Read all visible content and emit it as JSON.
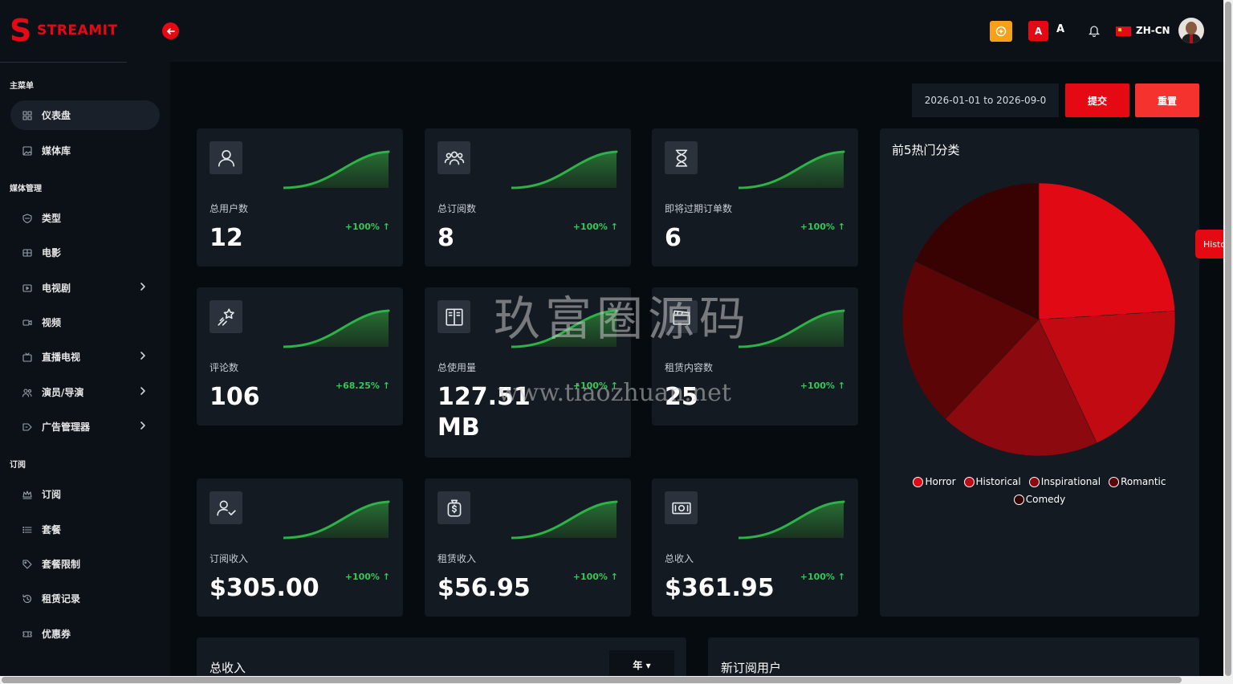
{
  "brand": {
    "logo_letter": "S",
    "name": "STREAMIT"
  },
  "sidebar": {
    "sections": [
      {
        "title": "主菜单",
        "items": [
          {
            "label": "仪表盘",
            "icon": "grid-icon",
            "active": true,
            "chevron": false
          },
          {
            "label": "媒体库",
            "icon": "image-icon",
            "active": false,
            "chevron": false
          }
        ]
      },
      {
        "title": "媒体管理",
        "items": [
          {
            "label": "类型",
            "icon": "shield-icon",
            "chevron": false
          },
          {
            "label": "电影",
            "icon": "film-icon",
            "chevron": false
          },
          {
            "label": "电视剧",
            "icon": "tv-play-icon",
            "chevron": true
          },
          {
            "label": "视频",
            "icon": "video-camera-icon",
            "chevron": false
          },
          {
            "label": "直播电视",
            "icon": "live-tv-icon",
            "chevron": true
          },
          {
            "label": "演员/导演",
            "icon": "users-icon",
            "chevron": true
          },
          {
            "label": "广告管理器",
            "icon": "ad-icon",
            "chevron": true
          }
        ]
      },
      {
        "title": "订阅",
        "items": [
          {
            "label": "订阅",
            "icon": "crown-icon",
            "chevron": false
          },
          {
            "label": "套餐",
            "icon": "list-icon",
            "chevron": false
          },
          {
            "label": "套餐限制",
            "icon": "tag-icon",
            "chevron": false
          },
          {
            "label": "租赁记录",
            "icon": "history-icon",
            "chevron": false
          },
          {
            "label": "优惠券",
            "icon": "ticket-icon",
            "chevron": false
          }
        ]
      }
    ]
  },
  "header": {
    "a_red": "A",
    "a_plain": "A",
    "language": "ZH-CN"
  },
  "toolbar": {
    "date_range": "2026-01-01 to 2026-09-0",
    "submit_label": "提交",
    "reset_label": "重置"
  },
  "stats": [
    {
      "label": "总用户数",
      "value": "12",
      "change": "+100% ↑",
      "icon": "user-icon"
    },
    {
      "label": "总订阅数",
      "value": "8",
      "change": "+100% ↑",
      "icon": "group-icon"
    },
    {
      "label": "即将过期订单数",
      "value": "6",
      "change": "+100% ↑",
      "icon": "hourglass-icon"
    },
    {
      "label": "评论数",
      "value": "106",
      "change": "+68.25% ↑",
      "icon": "stars-icon"
    },
    {
      "label": "总使用量",
      "value": "127.51 MB",
      "change": "+100% ↑",
      "icon": "book-icon"
    },
    {
      "label": "租赁内容数",
      "value": "25",
      "change": "+100% ↑",
      "icon": "clapper-icon"
    },
    {
      "label": "订阅收入",
      "value": "$305.00",
      "change": "+100% ↑",
      "icon": "user-check-icon"
    },
    {
      "label": "租赁收入",
      "value": "$56.95",
      "change": "+100% ↑",
      "icon": "money-bag-icon"
    },
    {
      "label": "总收入",
      "value": "$361.95",
      "change": "+100% ↑",
      "icon": "cash-icon"
    }
  ],
  "colors": {
    "accent": "#e50914",
    "positive": "#34c759",
    "card_bg": "#141a21",
    "page_bg": "#060b10"
  },
  "chart_data": {
    "type": "pie",
    "title": "前5热门分类",
    "slices": [
      {
        "label": "Horror",
        "value": 24,
        "color": "#e10a14"
      },
      {
        "label": "Historical",
        "value": 19,
        "color": "#c20a12"
      },
      {
        "label": "Inspirational",
        "value": 19,
        "color": "#8c0a0f"
      },
      {
        "label": "Romantic",
        "value": 20,
        "color": "#5c0507"
      },
      {
        "label": "Comedy",
        "value": 18,
        "color": "#380203"
      }
    ],
    "legend_position": "bottom"
  },
  "bottom": {
    "revenue_title": "总收入",
    "year_select": "年 ▾",
    "new_subscribers_title": "新订阅用户"
  },
  "history_tab": "Histo",
  "watermark": {
    "text": "玖富圈源码",
    "url": "www.tiaozhuan.net"
  }
}
